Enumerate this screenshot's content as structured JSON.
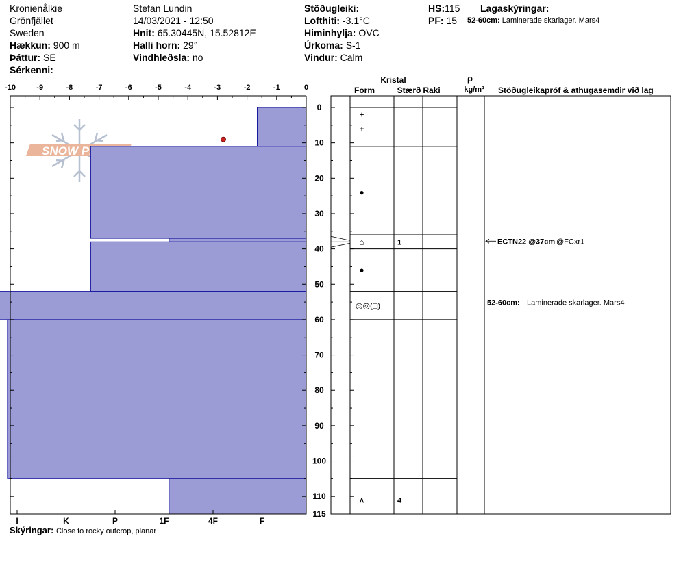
{
  "header": {
    "location": [
      "Kronienålkie",
      "Grönfjället",
      "Sweden"
    ],
    "elevation_label": "Hækkun:",
    "elevation_value": "900 m",
    "aspect_label": "Þáttur:",
    "aspect_value": "SE",
    "specifics_label": "Sérkenni:",
    "observer": "Stefan Lundin",
    "datetime": "14/03/2021 - 12:50",
    "coords_label": "Hnit:",
    "coords_value": "65.30445N, 15.52812E",
    "slope_label": "Halli horn:",
    "slope_value": "29°",
    "wind_loading_label": "Vindhleðsla:",
    "wind_loading_value": "no",
    "stability_label": "Stöðugleiki:",
    "air_temp_label": "Lofthiti:",
    "air_temp_value": "-3.1°C",
    "sky_label": "Himinhylja:",
    "sky_value": "OVC",
    "precip_label": "Úrkoma:",
    "precip_value": "S-1",
    "wind_label": "Vindur:",
    "wind_value": "Calm",
    "hs_label": "HS:",
    "hs_value": "115",
    "pf_label": "PF:",
    "pf_value": "15",
    "layer_notes_label": "Lagaskýringar:",
    "layer_note_range": "52-60cm:",
    "layer_note_text": "Laminerade skarlager. Mars4"
  },
  "footer": {
    "notes_label": "Skýringar:",
    "notes_value": "Close to rocky outcrop, planar"
  },
  "colors": {
    "hardness_fill": "#9b9bd6",
    "hardness_stroke": "#1a1aa0",
    "temp_point": "#cc2222",
    "logo": "#e8a98a"
  },
  "logo_text": "SNOW PILOT",
  "columns": {
    "crystal": "Kristal",
    "form": "Form",
    "size": "Stærð",
    "moisture": "Raki",
    "density_symbol": "ρ",
    "density_unit": "kg/m³",
    "comments": "Stöðugleikapróf & athugasemdir við lag"
  },
  "chart_data": {
    "type": "snow_profile",
    "depth_axis": {
      "min": 0,
      "max": 115,
      "ticks": [
        0,
        10,
        20,
        30,
        40,
        50,
        60,
        70,
        80,
        90,
        100,
        110,
        115
      ]
    },
    "temperature_axis": {
      "min": -10,
      "max": 0,
      "ticks": [
        -10,
        -9,
        -8,
        -7,
        -6,
        -5,
        -4,
        -3,
        -2,
        -1,
        0
      ]
    },
    "hardness_axis": {
      "categories": [
        "I",
        "K",
        "P",
        "1F",
        "4F",
        "F"
      ]
    },
    "hardness_profile": [
      {
        "top": 0,
        "bottom": 11,
        "hardness": 1
      },
      {
        "top": 11,
        "bottom": 37,
        "hardness": 4.4
      },
      {
        "top": 37,
        "bottom": 38,
        "hardness": 2.8
      },
      {
        "top": 38,
        "bottom": 52,
        "hardness": 4.4
      },
      {
        "top": 52,
        "bottom": 60,
        "hardness": 6.7
      },
      {
        "top": 60,
        "bottom": 105,
        "hardness": 6.1
      },
      {
        "top": 105,
        "bottom": 115,
        "hardness": 2.8
      }
    ],
    "temperature_points": [
      {
        "depth": 10,
        "temp": -2.8
      }
    ],
    "layer_boundaries": [
      0,
      11,
      36,
      40,
      52,
      60,
      105,
      115
    ],
    "layers": [
      {
        "depth": 2,
        "form": "+",
        "size": ""
      },
      {
        "depth": 6,
        "form": "+",
        "size": ""
      },
      {
        "depth": 24,
        "form": "●",
        "size": ""
      },
      {
        "depth": 38,
        "form": "⌂",
        "size": "1"
      },
      {
        "depth": 46,
        "form": "●",
        "size": ""
      },
      {
        "depth": 56,
        "form": "◎◎(□)",
        "size": ""
      },
      {
        "depth": 111,
        "form": "∧",
        "size": "4"
      }
    ],
    "tests": [
      {
        "depth": 38,
        "result": "ECTN22 @37cm",
        "detail": "@FCxr1"
      }
    ],
    "comments": [
      {
        "depth": 56,
        "range": "52-60cm:",
        "text": "Laminerade skarlager. Mars4"
      }
    ]
  }
}
